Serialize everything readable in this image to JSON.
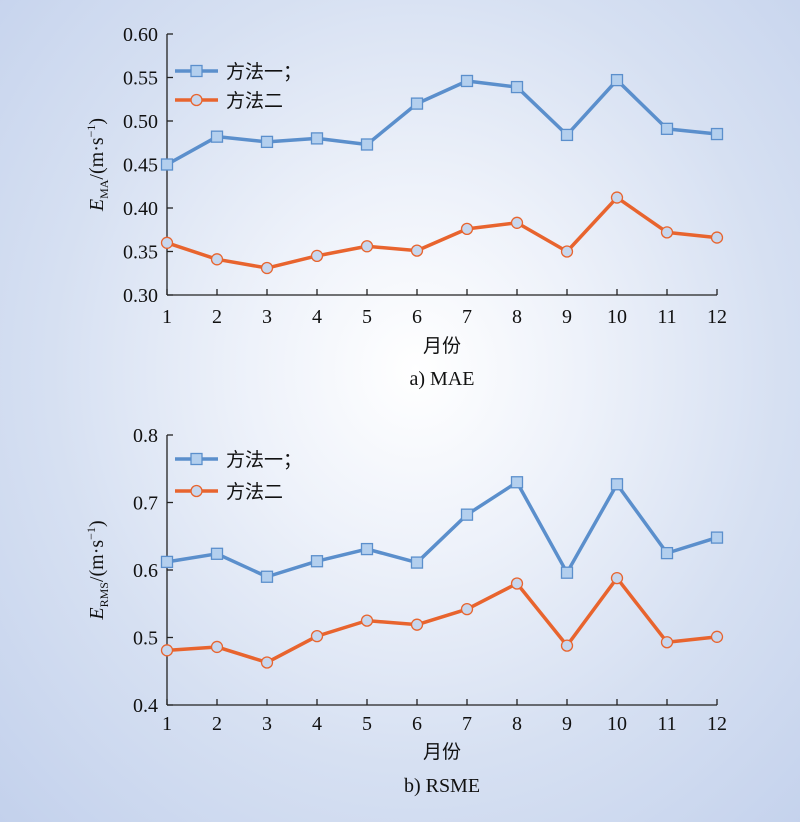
{
  "chart_data": [
    {
      "type": "line",
      "caption": "a) MAE",
      "xlabel": "月份",
      "ylabel_main": "E",
      "ylabel_sub": "MA",
      "ylabel_unit": "/(m·s",
      "ylabel_sup": "−1",
      "ylabel_close": ")",
      "categories": [
        "1",
        "2",
        "3",
        "4",
        "5",
        "6",
        "7",
        "8",
        "9",
        "10",
        "11",
        "12"
      ],
      "ylim": [
        0.3,
        0.6
      ],
      "yticks": [
        "0.30",
        "0.35",
        "0.40",
        "0.45",
        "0.50",
        "0.55",
        "0.60"
      ],
      "legend_position": "top-left",
      "series": [
        {
          "name": "方法一；",
          "marker": "square",
          "color": "#5b8fcc",
          "markerFill": "#b3cfee",
          "values": [
            0.45,
            0.482,
            0.476,
            0.48,
            0.473,
            0.52,
            0.546,
            0.539,
            0.484,
            0.547,
            0.491,
            0.485
          ]
        },
        {
          "name": "方法二",
          "marker": "circle",
          "color": "#e8642e",
          "markerFill": "#c7d7ee",
          "values": [
            0.36,
            0.341,
            0.331,
            0.345,
            0.356,
            0.351,
            0.376,
            0.383,
            0.35,
            0.412,
            0.372,
            0.366
          ]
        }
      ]
    },
    {
      "type": "line",
      "caption": "b) RSME",
      "xlabel": "月份",
      "ylabel_main": "E",
      "ylabel_sub": "RMS",
      "ylabel_unit": "/(m·s",
      "ylabel_sup": "−1",
      "ylabel_close": ")",
      "categories": [
        "1",
        "2",
        "3",
        "4",
        "5",
        "6",
        "7",
        "8",
        "9",
        "10",
        "11",
        "12"
      ],
      "ylim": [
        0.4,
        0.8
      ],
      "yticks": [
        "0.4",
        "0.5",
        "0.6",
        "0.7",
        "0.8"
      ],
      "legend_position": "top-left",
      "series": [
        {
          "name": "方法一；",
          "marker": "square",
          "color": "#5b8fcc",
          "markerFill": "#b3cfee",
          "values": [
            0.612,
            0.624,
            0.59,
            0.613,
            0.631,
            0.611,
            0.682,
            0.73,
            0.596,
            0.727,
            0.625,
            0.648
          ]
        },
        {
          "name": "方法二",
          "marker": "circle",
          "color": "#e8642e",
          "markerFill": "#c7d7ee",
          "values": [
            0.481,
            0.486,
            0.463,
            0.502,
            0.525,
            0.519,
            0.542,
            0.58,
            0.488,
            0.588,
            0.493,
            0.501
          ]
        }
      ]
    }
  ]
}
